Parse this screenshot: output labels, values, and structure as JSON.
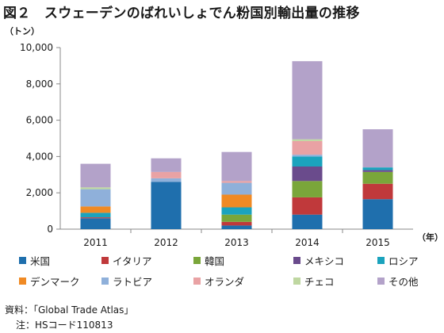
{
  "title": "図２　スウェーデンのばれいしょでん粉国別輸出量の推移",
  "source": "資料：「Global Trade Atlas」",
  "note": "注：HSコード110813",
  "chart_data": {
    "type": "bar",
    "stacked": true,
    "title": "図２　スウェーデンのばれいしょでん粉国別輸出量の推移",
    "ylabel": "（トン）",
    "xlabel": "（年）",
    "categories": [
      "2011",
      "2012",
      "2013",
      "2014",
      "2015"
    ],
    "ylim": [
      0,
      10000
    ],
    "yticks": [
      0,
      2000,
      4000,
      6000,
      8000,
      10000
    ],
    "ytick_labels": [
      "0",
      "2,000",
      "4,000",
      "6,000",
      "8,000",
      "10,000"
    ],
    "grid": false,
    "legend_position": "bottom",
    "series": [
      {
        "name": "米国",
        "color": "#1f6fad",
        "values": [
          600,
          2600,
          200,
          800,
          1650
        ]
      },
      {
        "name": "イタリア",
        "color": "#c0393b",
        "values": [
          50,
          0,
          200,
          950,
          850
        ]
      },
      {
        "name": "韓国",
        "color": "#7aa63a",
        "values": [
          0,
          0,
          400,
          900,
          650
        ]
      },
      {
        "name": "メキシコ",
        "color": "#6a4b8c",
        "values": [
          0,
          0,
          0,
          800,
          100
        ]
      },
      {
        "name": "ロシア",
        "color": "#1ba3bd",
        "values": [
          250,
          0,
          400,
          550,
          150
        ]
      },
      {
        "name": "デンマーク",
        "color": "#f08a24",
        "values": [
          350,
          0,
          700,
          0,
          0
        ]
      },
      {
        "name": "ラトビア",
        "color": "#8fb0da",
        "values": [
          950,
          200,
          650,
          100,
          0
        ]
      },
      {
        "name": "オランダ",
        "color": "#e9a2a4",
        "values": [
          0,
          350,
          100,
          750,
          0
        ]
      },
      {
        "name": "チェコ",
        "color": "#bfd7a1",
        "values": [
          100,
          0,
          0,
          100,
          0
        ]
      },
      {
        "name": "その他",
        "color": "#b3a2c9",
        "values": [
          1300,
          750,
          1600,
          4300,
          2100
        ]
      }
    ]
  }
}
